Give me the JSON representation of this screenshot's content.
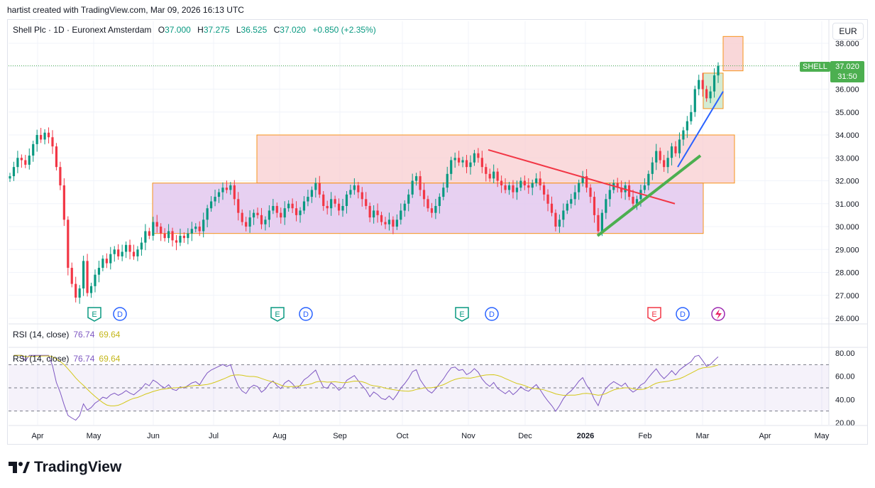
{
  "caption": "hartist created with TradingView.com, Mar 09, 2026 16:13 UTC",
  "legend": {
    "symbol": "Shell Plc · 1D · Euronext Amsterdam",
    "o_label": "O",
    "o": "37.000",
    "h_label": "H",
    "h": "37.275",
    "l_label": "L",
    "l": "36.525",
    "c_label": "C",
    "c": "37.020",
    "change": "+0.850 (+2.35%)"
  },
  "currency": "EUR",
  "last_price": {
    "ticker": "SHELL",
    "price": "37.020",
    "countdown": "31:50"
  },
  "rsi_panes": [
    {
      "label": "RSI (14, close)",
      "rsi": "76.74",
      "ma": "69.64"
    },
    {
      "label": "RSI (14, close)",
      "rsi": "76.74",
      "ma": "69.64"
    }
  ],
  "brand": "TradingView",
  "colors": {
    "up": "#089981",
    "down": "#f23645",
    "rsi": "#7e57c2",
    "rsi_ma": "#d4c81a",
    "box_red": "#f8cdd0",
    "box_purple": "#e3c8ee",
    "accent": "#2962ff"
  },
  "chart_data": {
    "type": "candlestick",
    "price_axis": {
      "min": 26,
      "max": 38,
      "ticks": [
        "38.000",
        "37.000",
        "36.000",
        "35.000",
        "34.000",
        "33.000",
        "32.000",
        "31.000",
        "30.000",
        "29.000",
        "28.000",
        "27.000",
        "26.000"
      ]
    },
    "time_axis": {
      "labels": [
        "Apr",
        "May",
        "Jun",
        "Jul",
        "Aug",
        "Sep",
        "Oct",
        "Nov",
        "Dec",
        "2026",
        "Feb",
        "Mar",
        "Apr",
        "May"
      ]
    },
    "events": [
      {
        "type": "E",
        "month": "Apr"
      },
      {
        "type": "D",
        "month": "Apr"
      },
      {
        "type": "E",
        "month": "Jul"
      },
      {
        "type": "D",
        "month": "Aug"
      },
      {
        "type": "E",
        "month": "Oct"
      },
      {
        "type": "D",
        "month": "Nov"
      },
      {
        "type": "E",
        "month": "Feb"
      },
      {
        "type": "D",
        "month": "Feb"
      }
    ],
    "zones": [
      {
        "name": "resistance-zone",
        "from": "Jul",
        "to": "Mar",
        "low": 31.9,
        "high": 34.0
      },
      {
        "name": "range-zone",
        "from": "Jun",
        "to": "Feb",
        "low": 29.7,
        "high": 31.9
      },
      {
        "name": "target-zone",
        "from": "Mar",
        "to": "Mar",
        "low": 36.8,
        "high": 38.3
      }
    ],
    "closes": [
      32.2,
      32.6,
      33.0,
      32.9,
      32.7,
      33.1,
      33.6,
      34.0,
      33.8,
      34.1,
      33.9,
      33.5,
      32.6,
      31.8,
      30.3,
      28.2,
      27.5,
      26.9,
      27.3,
      28.5,
      27.1,
      27.4,
      27.9,
      28.2,
      28.6,
      28.4,
      28.8,
      29.0,
      28.7,
      28.9,
      29.2,
      28.9,
      28.7,
      29.0,
      29.3,
      29.8,
      29.6,
      30.2,
      30.0,
      29.7,
      29.5,
      29.8,
      29.4,
      29.3,
      29.6,
      29.5,
      29.7,
      29.9,
      30.0,
      29.8,
      30.3,
      30.8,
      31.1,
      31.3,
      31.5,
      31.7,
      31.6,
      31.8,
      31.2,
      30.6,
      30.2,
      30.0,
      30.4,
      30.6,
      30.5,
      30.1,
      30.3,
      30.7,
      30.9,
      30.6,
      30.4,
      30.8,
      31.0,
      30.8,
      30.5,
      30.7,
      31.1,
      31.3,
      31.6,
      31.9,
      31.4,
      30.9,
      30.8,
      31.2,
      31.0,
      30.7,
      30.9,
      31.4,
      31.6,
      31.8,
      31.5,
      31.2,
      30.9,
      30.4,
      30.7,
      30.5,
      30.2,
      30.1,
      30.3,
      30.0,
      30.3,
      30.7,
      31.0,
      31.4,
      32.0,
      32.2,
      31.6,
      31.2,
      30.8,
      30.6,
      30.9,
      31.3,
      31.7,
      32.3,
      32.9,
      33.0,
      32.8,
      32.9,
      32.6,
      32.8,
      33.2,
      33.0,
      32.6,
      32.3,
      32.1,
      32.4,
      32.0,
      31.8,
      31.6,
      31.8,
      31.5,
      31.7,
      32.0,
      31.8,
      31.7,
      31.9,
      32.1,
      31.8,
      31.4,
      31.0,
      30.6,
      30.0,
      30.3,
      30.7,
      31.0,
      31.2,
      31.5,
      31.9,
      32.2,
      31.7,
      31.3,
      30.5,
      29.8,
      30.6,
      31.2,
      31.6,
      31.9,
      31.7,
      31.5,
      31.8,
      31.3,
      31.0,
      31.2,
      31.6,
      31.8,
      32.3,
      32.8,
      33.3,
      32.9,
      32.6,
      33.0,
      33.5,
      33.2,
      33.8,
      34.2,
      34.6,
      35.0,
      36.0,
      36.4,
      36.0,
      35.6,
      35.9,
      36.6,
      37.02
    ],
    "trendlines": [
      {
        "name": "red-downtrend",
        "color": "#f23645"
      },
      {
        "name": "green-uptrend",
        "color": "#4caf50"
      },
      {
        "name": "blue-uptrend",
        "color": "#2962ff"
      }
    ],
    "rsi": {
      "levels": [
        30,
        50,
        70
      ],
      "ticks": [
        "80.00",
        "60.00",
        "40.00",
        "20.00"
      ],
      "last": 76.74,
      "ma_last": 69.64
    }
  }
}
